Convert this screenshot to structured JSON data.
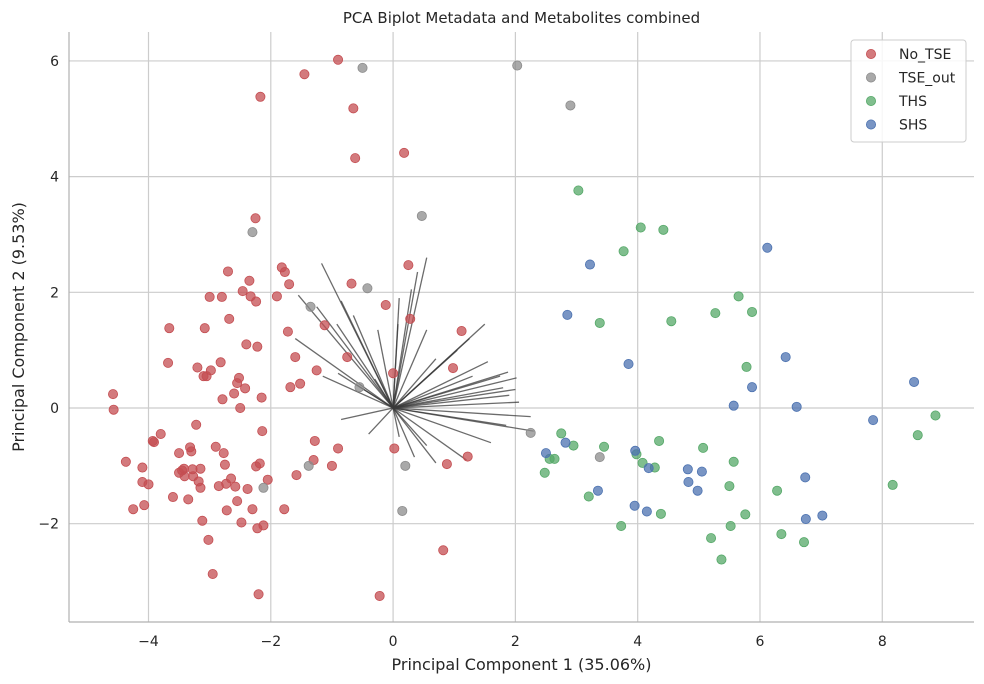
{
  "chart_data": {
    "type": "scatter",
    "title": "PCA Biplot Metadata and Metabolites combined",
    "xlabel": "Principal Component 1 (35.06%)",
    "ylabel": "Principal Component 2 (9.53%)",
    "xlim": [
      -5.3,
      9.5
    ],
    "ylim": [
      -3.7,
      6.5
    ],
    "xticks": [
      -4,
      -2,
      0,
      2,
      4,
      6,
      8
    ],
    "yticks": [
      -2,
      0,
      2,
      4,
      6
    ],
    "xtick_labels": [
      "−4",
      "−2",
      "0",
      "2",
      "4",
      "6",
      "8"
    ],
    "ytick_labels": [
      "−2",
      "0",
      "2",
      "4",
      "6"
    ],
    "grid": true,
    "legend_position": "top-right",
    "series": [
      {
        "name": "No_TSE",
        "color": "#c44e52",
        "points": [
          [
            -4.58,
            0.24
          ],
          [
            -4.57,
            -0.03
          ],
          [
            -4.37,
            -0.93
          ],
          [
            -4.25,
            -1.75
          ],
          [
            -4.1,
            -1.03
          ],
          [
            -4.1,
            -1.28
          ],
          [
            -4.07,
            -1.68
          ],
          [
            -4.0,
            -1.32
          ],
          [
            -3.93,
            -0.57
          ],
          [
            -3.91,
            -0.59
          ],
          [
            -3.8,
            -0.45
          ],
          [
            -3.68,
            0.78
          ],
          [
            -3.66,
            1.38
          ],
          [
            -3.6,
            -1.54
          ],
          [
            -3.5,
            -0.78
          ],
          [
            -3.5,
            -1.12
          ],
          [
            -3.45,
            -1.08
          ],
          [
            -3.42,
            -1.05
          ],
          [
            -3.41,
            -1.18
          ],
          [
            -3.35,
            -1.58
          ],
          [
            -3.32,
            -0.68
          ],
          [
            -3.3,
            -0.75
          ],
          [
            -3.28,
            -1.06
          ],
          [
            -3.27,
            -1.18
          ],
          [
            -3.22,
            -0.29
          ],
          [
            -3.2,
            0.7
          ],
          [
            -3.18,
            -1.27
          ],
          [
            -3.15,
            -1.38
          ],
          [
            -3.15,
            -1.05
          ],
          [
            -3.12,
            -1.95
          ],
          [
            -3.1,
            0.55
          ],
          [
            -3.08,
            1.38
          ],
          [
            -3.05,
            0.55
          ],
          [
            -3.02,
            -2.28
          ],
          [
            -3.0,
            1.92
          ],
          [
            -2.98,
            0.65
          ],
          [
            -2.95,
            -2.87
          ],
          [
            -2.9,
            -0.67
          ],
          [
            -2.85,
            -1.35
          ],
          [
            -2.82,
            0.79
          ],
          [
            -2.8,
            1.92
          ],
          [
            -2.79,
            0.15
          ],
          [
            -2.77,
            -0.78
          ],
          [
            -2.75,
            -0.98
          ],
          [
            -2.73,
            -1.31
          ],
          [
            -2.72,
            -1.77
          ],
          [
            -2.7,
            2.36
          ],
          [
            -2.68,
            1.54
          ],
          [
            -2.65,
            -1.22
          ],
          [
            -2.6,
            0.25
          ],
          [
            -2.58,
            -1.36
          ],
          [
            -2.55,
            0.43
          ],
          [
            -2.55,
            -1.61
          ],
          [
            -2.52,
            0.52
          ],
          [
            -2.5,
            0.0
          ],
          [
            -2.48,
            -1.98
          ],
          [
            -2.46,
            2.02
          ],
          [
            -2.42,
            0.34
          ],
          [
            -2.4,
            1.1
          ],
          [
            -2.38,
            -1.4
          ],
          [
            -2.35,
            2.2
          ],
          [
            -2.33,
            1.93
          ],
          [
            -2.3,
            -1.75
          ],
          [
            -2.25,
            3.28
          ],
          [
            -2.24,
            -1.01
          ],
          [
            -2.24,
            1.84
          ],
          [
            -2.22,
            -2.08
          ],
          [
            -2.22,
            1.06
          ],
          [
            -2.2,
            -3.22
          ],
          [
            -2.18,
            -0.96
          ],
          [
            -2.17,
            5.38
          ],
          [
            -2.15,
            0.18
          ],
          [
            -2.14,
            -0.4
          ],
          [
            -2.12,
            -2.03
          ],
          [
            -2.05,
            -1.24
          ],
          [
            -1.9,
            1.93
          ],
          [
            -1.82,
            2.43
          ],
          [
            -1.78,
            -1.75
          ],
          [
            -1.77,
            2.35
          ],
          [
            -1.72,
            1.32
          ],
          [
            -1.7,
            2.14
          ],
          [
            -1.68,
            0.36
          ],
          [
            -1.6,
            0.88
          ],
          [
            -1.58,
            -1.16
          ],
          [
            -1.52,
            0.42
          ],
          [
            -1.45,
            5.77
          ],
          [
            -1.3,
            -0.9
          ],
          [
            -1.28,
            -0.57
          ],
          [
            -1.25,
            0.65
          ],
          [
            -1.12,
            1.43
          ],
          [
            -1.0,
            -1.0
          ],
          [
            -0.9,
            -0.7
          ],
          [
            -0.9,
            6.02
          ],
          [
            -0.75,
            0.88
          ],
          [
            -0.68,
            2.15
          ],
          [
            -0.65,
            5.18
          ],
          [
            -0.62,
            4.32
          ],
          [
            -0.22,
            -3.25
          ],
          [
            -0.12,
            1.78
          ],
          [
            0.0,
            0.6
          ],
          [
            0.02,
            -0.7
          ],
          [
            0.18,
            4.41
          ],
          [
            0.25,
            2.47
          ],
          [
            0.28,
            1.54
          ],
          [
            0.88,
            -0.97
          ],
          [
            0.98,
            0.69
          ],
          [
            1.12,
            1.33
          ],
          [
            1.22,
            -0.84
          ],
          [
            0.82,
            -2.46
          ]
        ]
      },
      {
        "name": "TSE_out",
        "color": "#8c8c8c",
        "points": [
          [
            -2.3,
            3.04
          ],
          [
            -2.12,
            -1.38
          ],
          [
            -1.38,
            -1.0
          ],
          [
            -1.35,
            1.75
          ],
          [
            -0.55,
            0.36
          ],
          [
            -0.5,
            5.88
          ],
          [
            -0.42,
            2.07
          ],
          [
            0.15,
            -1.78
          ],
          [
            0.2,
            -1.0
          ],
          [
            0.47,
            3.32
          ],
          [
            2.03,
            5.92
          ],
          [
            2.25,
            -0.43
          ],
          [
            2.9,
            5.23
          ],
          [
            3.38,
            -0.85
          ]
        ]
      },
      {
        "name": "THS",
        "color": "#55a868",
        "points": [
          [
            2.48,
            -1.12
          ],
          [
            2.56,
            -0.88
          ],
          [
            2.64,
            -0.88
          ],
          [
            2.75,
            -0.44
          ],
          [
            2.95,
            -0.65
          ],
          [
            3.03,
            3.76
          ],
          [
            3.2,
            -1.53
          ],
          [
            3.38,
            1.47
          ],
          [
            3.45,
            -0.67
          ],
          [
            3.73,
            -2.04
          ],
          [
            3.77,
            2.71
          ],
          [
            3.98,
            -0.8
          ],
          [
            4.05,
            3.12
          ],
          [
            4.08,
            -0.95
          ],
          [
            4.28,
            -1.03
          ],
          [
            4.35,
            -0.57
          ],
          [
            4.38,
            -1.83
          ],
          [
            4.42,
            3.08
          ],
          [
            4.55,
            1.5
          ],
          [
            5.07,
            -0.69
          ],
          [
            5.2,
            -2.25
          ],
          [
            5.27,
            1.64
          ],
          [
            5.37,
            -2.62
          ],
          [
            5.5,
            -1.35
          ],
          [
            5.52,
            -2.04
          ],
          [
            5.57,
            -0.93
          ],
          [
            5.65,
            1.93
          ],
          [
            5.76,
            -1.84
          ],
          [
            5.78,
            0.71
          ],
          [
            5.87,
            1.66
          ],
          [
            6.28,
            -1.43
          ],
          [
            6.35,
            -2.18
          ],
          [
            6.72,
            -2.32
          ],
          [
            8.17,
            -1.33
          ],
          [
            8.58,
            -0.47
          ],
          [
            8.87,
            -0.13
          ]
        ]
      },
      {
        "name": "SHS",
        "color": "#4c72b0",
        "points": [
          [
            2.5,
            -0.78
          ],
          [
            2.82,
            -0.6
          ],
          [
            2.85,
            1.61
          ],
          [
            3.22,
            2.48
          ],
          [
            3.35,
            -1.43
          ],
          [
            3.85,
            0.76
          ],
          [
            3.95,
            -1.69
          ],
          [
            3.96,
            -0.74
          ],
          [
            4.15,
            -1.79
          ],
          [
            4.18,
            -1.04
          ],
          [
            4.82,
            -1.06
          ],
          [
            4.83,
            -1.28
          ],
          [
            4.98,
            -1.43
          ],
          [
            5.05,
            -1.1
          ],
          [
            5.57,
            0.04
          ],
          [
            5.87,
            0.36
          ],
          [
            6.12,
            2.77
          ],
          [
            6.42,
            0.88
          ],
          [
            6.6,
            0.02
          ],
          [
            6.74,
            -1.2
          ],
          [
            6.75,
            -1.92
          ],
          [
            7.02,
            -1.86
          ],
          [
            7.85,
            -0.21
          ],
          [
            8.52,
            0.45
          ]
        ]
      }
    ],
    "loading_vectors": [
      [
        -1.17,
        2.5
      ],
      [
        -0.85,
        1.85
      ],
      [
        -0.65,
        1.6
      ],
      [
        -1.55,
        1.95
      ],
      [
        -1.25,
        1.75
      ],
      [
        -0.92,
        1.45
      ],
      [
        -1.6,
        1.2
      ],
      [
        -0.25,
        1.35
      ],
      [
        0.1,
        1.9
      ],
      [
        0.4,
        2.35
      ],
      [
        0.55,
        2.6
      ],
      [
        0.3,
        2.05
      ],
      [
        0.08,
        1.45
      ],
      [
        0.55,
        1.35
      ],
      [
        1.5,
        1.45
      ],
      [
        1.25,
        1.2
      ],
      [
        1.05,
        1.0
      ],
      [
        0.7,
        0.85
      ],
      [
        1.75,
        0.55
      ],
      [
        1.8,
        0.35
      ],
      [
        1.55,
        0.8
      ],
      [
        1.88,
        0.62
      ],
      [
        2.02,
        0.52
      ],
      [
        1.3,
        0.55
      ],
      [
        2.0,
        0.32
      ],
      [
        2.06,
        0.1
      ],
      [
        1.9,
        0.22
      ],
      [
        2.25,
        -0.15
      ],
      [
        1.85,
        -0.3
      ],
      [
        2.3,
        -0.4
      ],
      [
        1.6,
        -0.6
      ],
      [
        1.2,
        -0.9
      ],
      [
        0.7,
        -0.95
      ],
      [
        0.55,
        -0.65
      ],
      [
        0.35,
        -0.85
      ],
      [
        0.1,
        -0.5
      ],
      [
        -0.4,
        -0.45
      ],
      [
        -0.85,
        -0.2
      ],
      [
        -0.6,
        0.4
      ],
      [
        -0.9,
        0.6
      ],
      [
        -1.15,
        0.55
      ],
      [
        -0.3,
        0.5
      ]
    ]
  }
}
